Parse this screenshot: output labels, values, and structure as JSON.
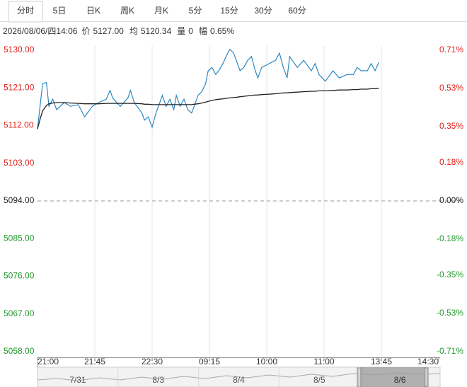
{
  "tabs": {
    "items": [
      "分时",
      "5日",
      "日K",
      "周K",
      "月K",
      "5分",
      "15分",
      "30分",
      "60分"
    ],
    "active": 0
  },
  "info": {
    "time": "2026/08/06/四14:06",
    "fields": [
      {
        "label": "价",
        "value": "5127.00"
      },
      {
        "label": "均",
        "value": "5120.34"
      },
      {
        "label": "量",
        "value": "0"
      },
      {
        "label": "幅",
        "value": "0.65%"
      }
    ]
  },
  "chart_data": {
    "type": "line",
    "x": [
      0,
      2,
      4,
      7,
      9,
      12,
      15,
      21,
      26,
      32,
      37,
      43,
      48,
      54,
      57,
      59,
      65,
      71,
      73,
      76,
      82,
      84,
      87,
      90,
      93,
      96,
      98,
      101,
      104,
      107,
      109,
      112,
      115,
      118,
      121,
      123,
      126,
      129,
      132,
      134,
      137,
      140,
      143,
      146,
      148,
      151,
      154,
      157,
      159,
      162,
      165,
      168,
      171,
      173,
      176,
      182,
      187,
      190,
      193,
      196,
      198,
      204,
      209,
      215,
      218,
      221,
      226,
      232,
      237,
      243,
      248,
      251,
      254,
      259,
      262,
      265,
      268
    ],
    "series": [
      {
        "color": "#2e87c2",
        "values": [
          5111.2,
          5116.6,
          5122,
          5122.3,
          5116.6,
          5118.3,
          5115.8,
          5117.5,
          5116.6,
          5117,
          5114.1,
          5116.6,
          5117.5,
          5118.3,
          5120.4,
          5118.6,
          5116.6,
          5118.6,
          5120.4,
          5117.5,
          5115,
          5113.3,
          5114.1,
          5111.6,
          5115,
          5117.5,
          5119.2,
          5116.6,
          5118.3,
          5115.8,
          5119.2,
          5116.6,
          5118.3,
          5115.8,
          5115,
          5116.6,
          5119.2,
          5120.1,
          5122,
          5125.1,
          5125.9,
          5124.2,
          5125.4,
          5127.1,
          5128.5,
          5130.2,
          5129.3,
          5126.8,
          5125.1,
          5125.9,
          5127.6,
          5128.5,
          5125.1,
          5123.4,
          5125.9,
          5126.8,
          5127.6,
          5129.3,
          5125.9,
          5123.4,
          5128.5,
          5125.9,
          5127.6,
          5125.1,
          5126.8,
          5124.2,
          5122.6,
          5125.1,
          5123.4,
          5124.2,
          5124.2,
          5125.9,
          5125.1,
          5125.1,
          5126.8,
          5125.1,
          5127.1
        ]
      },
      {
        "color": "#222222",
        "values": [
          5111.2,
          5113.5,
          5115.5,
          5116.8,
          5117.2,
          5117.4,
          5117.5,
          5117.5,
          5117.4,
          5117.3,
          5117.2,
          5117.2,
          5117.2,
          5117.3,
          5117.3,
          5117.3,
          5117.3,
          5117.3,
          5117.3,
          5117.3,
          5117.2,
          5117.1,
          5117.1,
          5117,
          5117,
          5117,
          5117,
          5117,
          5117,
          5117,
          5117,
          5117,
          5117,
          5117,
          5117,
          5117.1,
          5117.2,
          5117.4,
          5117.6,
          5117.8,
          5118,
          5118.2,
          5118.3,
          5118.4,
          5118.5,
          5118.6,
          5118.7,
          5118.8,
          5118.9,
          5119,
          5119.1,
          5119.2,
          5119.3,
          5119.3,
          5119.4,
          5119.5,
          5119.6,
          5119.7,
          5119.8,
          5119.8,
          5119.9,
          5120,
          5120.1,
          5120.2,
          5120.2,
          5120.3,
          5120.3,
          5120.4,
          5120.5,
          5120.5,
          5120.6,
          5120.6,
          5120.7,
          5120.7,
          5120.8,
          5120.8,
          5120.9
        ]
      }
    ],
    "xlim": [
      0,
      315
    ],
    "xticks": [
      {
        "value": 0,
        "label": "21:00"
      },
      {
        "value": 45,
        "label": "21:45"
      },
      {
        "value": 90,
        "label": "22:30"
      },
      {
        "value": 135,
        "label": "09:15"
      },
      {
        "value": 180,
        "label": "10:00"
      },
      {
        "value": 225,
        "label": "11:00"
      },
      {
        "value": 270,
        "label": "13:45"
      },
      {
        "value": 315,
        "label": "14:30"
      }
    ],
    "ylim": [
      5058,
      5130
    ],
    "yticks": [
      {
        "value": 5130,
        "label": "5130.00"
      },
      {
        "value": 5121,
        "label": "5121.00"
      },
      {
        "value": 5112,
        "label": "5112.00"
      },
      {
        "value": 5103,
        "label": "5103.00"
      },
      {
        "value": 5094,
        "label": "5094.00"
      },
      {
        "value": 5085,
        "label": "5085.00"
      },
      {
        "value": 5076,
        "label": "5076.00"
      },
      {
        "value": 5067,
        "label": "5067.00"
      },
      {
        "value": 5058,
        "label": "5058.00"
      }
    ],
    "base": 5094,
    "y2lim": [
      -0.71,
      0.71
    ],
    "y2ticks": [
      {
        "value": 0.71,
        "label": "0.71%"
      },
      {
        "value": 0.53,
        "label": "0.53%"
      },
      {
        "value": 0.35,
        "label": "0.35%"
      },
      {
        "value": 0.18,
        "label": "0.18%"
      },
      {
        "value": 0,
        "label": "0.00%"
      },
      {
        "value": -0.18,
        "label": "-0.18%"
      },
      {
        "value": -0.35,
        "label": "-0.35%"
      },
      {
        "value": -0.53,
        "label": "-0.53%"
      },
      {
        "value": -0.71,
        "label": "-0.71%"
      }
    ],
    "up_color": "#e0201a",
    "down_color": "#1f9a2a",
    "flat_color": "#222222",
    "grid": true
  },
  "navigator": {
    "labels": [
      "7/31",
      "8/3",
      "8/4",
      "8/5",
      "8/6"
    ],
    "selected": 4
  }
}
